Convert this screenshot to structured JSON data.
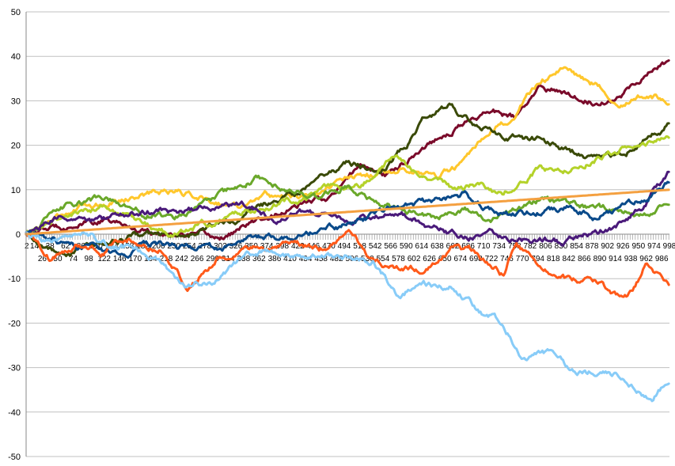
{
  "chart_data": {
    "type": "line",
    "title": "",
    "xlabel": "",
    "ylabel": "",
    "xlim": [
      1,
      998
    ],
    "ylim": [
      -50,
      50
    ],
    "grid": "horizontal",
    "legend": "none",
    "y_ticks": [
      -50,
      -40,
      -30,
      -20,
      -10,
      0,
      10,
      20,
      30,
      40,
      50
    ],
    "x_tick_labels_row1": [
      "2",
      "14",
      "38",
      "62",
      "86",
      "110",
      "134",
      "158",
      "182",
      "206",
      "230",
      "254",
      "278",
      "302",
      "326",
      "350",
      "374",
      "398",
      "422",
      "446",
      "470",
      "494",
      "518",
      "542",
      "566",
      "590",
      "614",
      "638",
      "662",
      "686",
      "710",
      "734",
      "758",
      "782",
      "806",
      "830",
      "854",
      "878",
      "902",
      "926",
      "950",
      "974",
      "998"
    ],
    "x_tick_labels_row2": [
      "26",
      "50",
      "74",
      "98",
      "122",
      "146",
      "170",
      "194",
      "218",
      "242",
      "266",
      "290",
      "314",
      "338",
      "362",
      "386",
      "410",
      "434",
      "458",
      "482",
      "506",
      "530",
      "554",
      "578",
      "602",
      "626",
      "650",
      "674",
      "698",
      "722",
      "746",
      "770",
      "794",
      "818",
      "842",
      "866",
      "890",
      "914",
      "938",
      "962",
      "986"
    ],
    "series": [
      {
        "color": "#7a0a2a",
        "anchors": [
          [
            1,
            0
          ],
          [
            60,
            2
          ],
          [
            120,
            3
          ],
          [
            180,
            1
          ],
          [
            250,
            0
          ],
          [
            300,
            -1
          ],
          [
            360,
            3
          ],
          [
            420,
            6
          ],
          [
            480,
            9
          ],
          [
            520,
            16
          ],
          [
            560,
            13
          ],
          [
            600,
            18
          ],
          [
            640,
            22
          ],
          [
            680,
            25
          ],
          [
            720,
            28
          ],
          [
            760,
            26
          ],
          [
            800,
            33
          ],
          [
            840,
            32
          ],
          [
            880,
            30
          ],
          [
            920,
            31
          ],
          [
            960,
            36
          ],
          [
            998,
            39
          ]
        ]
      },
      {
        "color": "#ffc72c",
        "anchors": [
          [
            1,
            0
          ],
          [
            60,
            5
          ],
          [
            120,
            7
          ],
          [
            180,
            9
          ],
          [
            230,
            10
          ],
          [
            280,
            8
          ],
          [
            330,
            6
          ],
          [
            370,
            9
          ],
          [
            420,
            8
          ],
          [
            470,
            11
          ],
          [
            520,
            13
          ],
          [
            560,
            14
          ],
          [
            600,
            15
          ],
          [
            640,
            13
          ],
          [
            680,
            16
          ],
          [
            720,
            22
          ],
          [
            760,
            27
          ],
          [
            800,
            35
          ],
          [
            840,
            37
          ],
          [
            880,
            34
          ],
          [
            920,
            30
          ],
          [
            960,
            31
          ],
          [
            998,
            30
          ]
        ]
      },
      {
        "color": "#3a4a08",
        "anchors": [
          [
            1,
            0
          ],
          [
            60,
            -5
          ],
          [
            120,
            -2
          ],
          [
            180,
            0
          ],
          [
            240,
            -1
          ],
          [
            290,
            2
          ],
          [
            340,
            4
          ],
          [
            380,
            7
          ],
          [
            420,
            9
          ],
          [
            460,
            14
          ],
          [
            500,
            16
          ],
          [
            550,
            14
          ],
          [
            590,
            20
          ],
          [
            620,
            27
          ],
          [
            660,
            29
          ],
          [
            700,
            24
          ],
          [
            740,
            22
          ],
          [
            800,
            21
          ],
          [
            840,
            19
          ],
          [
            880,
            17
          ],
          [
            930,
            18
          ],
          [
            970,
            23
          ],
          [
            998,
            25
          ]
        ]
      },
      {
        "color": "#b4d22a",
        "anchors": [
          [
            1,
            0
          ],
          [
            60,
            4
          ],
          [
            120,
            6
          ],
          [
            170,
            3
          ],
          [
            220,
            0
          ],
          [
            270,
            2
          ],
          [
            320,
            4
          ],
          [
            360,
            6
          ],
          [
            420,
            8
          ],
          [
            470,
            10
          ],
          [
            520,
            11
          ],
          [
            570,
            17
          ],
          [
            620,
            14
          ],
          [
            660,
            10
          ],
          [
            700,
            11
          ],
          [
            740,
            9
          ],
          [
            790,
            14
          ],
          [
            840,
            15
          ],
          [
            880,
            17
          ],
          [
            920,
            19
          ],
          [
            960,
            20
          ],
          [
            998,
            21
          ]
        ]
      },
      {
        "color": "#6aa82a",
        "anchors": [
          [
            1,
            0
          ],
          [
            60,
            6
          ],
          [
            120,
            8
          ],
          [
            180,
            5
          ],
          [
            230,
            4
          ],
          [
            270,
            6
          ],
          [
            310,
            9
          ],
          [
            360,
            13
          ],
          [
            400,
            10
          ],
          [
            450,
            8
          ],
          [
            500,
            11
          ],
          [
            550,
            7
          ],
          [
            600,
            5
          ],
          [
            640,
            4
          ],
          [
            680,
            6
          ],
          [
            720,
            3
          ],
          [
            760,
            5
          ],
          [
            800,
            8
          ],
          [
            840,
            7
          ],
          [
            880,
            6
          ],
          [
            920,
            5
          ],
          [
            960,
            4
          ],
          [
            998,
            7
          ]
        ]
      },
      {
        "color": "#4a1a7a",
        "anchors": [
          [
            1,
            0
          ],
          [
            60,
            4
          ],
          [
            120,
            3
          ],
          [
            180,
            5
          ],
          [
            240,
            5
          ],
          [
            290,
            6
          ],
          [
            340,
            6
          ],
          [
            390,
            3
          ],
          [
            430,
            5
          ],
          [
            470,
            4
          ],
          [
            510,
            3
          ],
          [
            560,
            5
          ],
          [
            600,
            4
          ],
          [
            640,
            1
          ],
          [
            680,
            -1
          ],
          [
            720,
            0
          ],
          [
            760,
            -1
          ],
          [
            800,
            -1
          ],
          [
            840,
            -2
          ],
          [
            880,
            0
          ],
          [
            920,
            2
          ],
          [
            960,
            7
          ],
          [
            998,
            14
          ]
        ]
      },
      {
        "color": "#0a4a8a",
        "anchors": [
          [
            1,
            0
          ],
          [
            50,
            -2
          ],
          [
            100,
            -3
          ],
          [
            150,
            -5
          ],
          [
            200,
            -2
          ],
          [
            250,
            -3
          ],
          [
            300,
            -4
          ],
          [
            340,
            -2
          ],
          [
            380,
            0
          ],
          [
            420,
            -1
          ],
          [
            470,
            1
          ],
          [
            520,
            3
          ],
          [
            560,
            5
          ],
          [
            600,
            6
          ],
          [
            640,
            8
          ],
          [
            680,
            9
          ],
          [
            720,
            5
          ],
          [
            760,
            4
          ],
          [
            800,
            5
          ],
          [
            840,
            6
          ],
          [
            880,
            4
          ],
          [
            920,
            6
          ],
          [
            960,
            8
          ],
          [
            998,
            12
          ]
        ]
      },
      {
        "color": "#ff5a1a",
        "anchors": [
          [
            1,
            0
          ],
          [
            40,
            -6
          ],
          [
            80,
            -2
          ],
          [
            120,
            -4
          ],
          [
            160,
            -1
          ],
          [
            210,
            -3
          ],
          [
            250,
            -12
          ],
          [
            300,
            -5
          ],
          [
            340,
            -3
          ],
          [
            380,
            -4
          ],
          [
            420,
            -2
          ],
          [
            460,
            -3
          ],
          [
            500,
            0
          ],
          [
            540,
            -6
          ],
          [
            580,
            -8
          ],
          [
            620,
            -8
          ],
          [
            660,
            -3
          ],
          [
            700,
            -4
          ],
          [
            740,
            -9
          ],
          [
            760,
            -2
          ],
          [
            800,
            -8
          ],
          [
            840,
            -10
          ],
          [
            880,
            -11
          ],
          [
            920,
            -14
          ],
          [
            940,
            -13
          ],
          [
            960,
            -7
          ],
          [
            998,
            -11
          ]
        ]
      },
      {
        "color": "#88ccf8",
        "anchors": [
          [
            1,
            0
          ],
          [
            50,
            -2
          ],
          [
            100,
            -1
          ],
          [
            150,
            -3
          ],
          [
            200,
            -5
          ],
          [
            250,
            -12
          ],
          [
            300,
            -10
          ],
          [
            340,
            -5
          ],
          [
            380,
            -4
          ],
          [
            420,
            -5
          ],
          [
            460,
            -4
          ],
          [
            500,
            -5
          ],
          [
            540,
            -6
          ],
          [
            580,
            -14
          ],
          [
            610,
            -11
          ],
          [
            660,
            -12
          ],
          [
            700,
            -17
          ],
          [
            740,
            -20
          ],
          [
            770,
            -27
          ],
          [
            810,
            -27
          ],
          [
            850,
            -31
          ],
          [
            890,
            -31
          ],
          [
            930,
            -32
          ],
          [
            960,
            -36
          ],
          [
            970,
            -38
          ],
          [
            998,
            -32
          ]
        ]
      },
      {
        "color": "#f4a040",
        "anchors": [
          [
            1,
            0
          ],
          [
            998,
            10
          ]
        ]
      }
    ]
  }
}
